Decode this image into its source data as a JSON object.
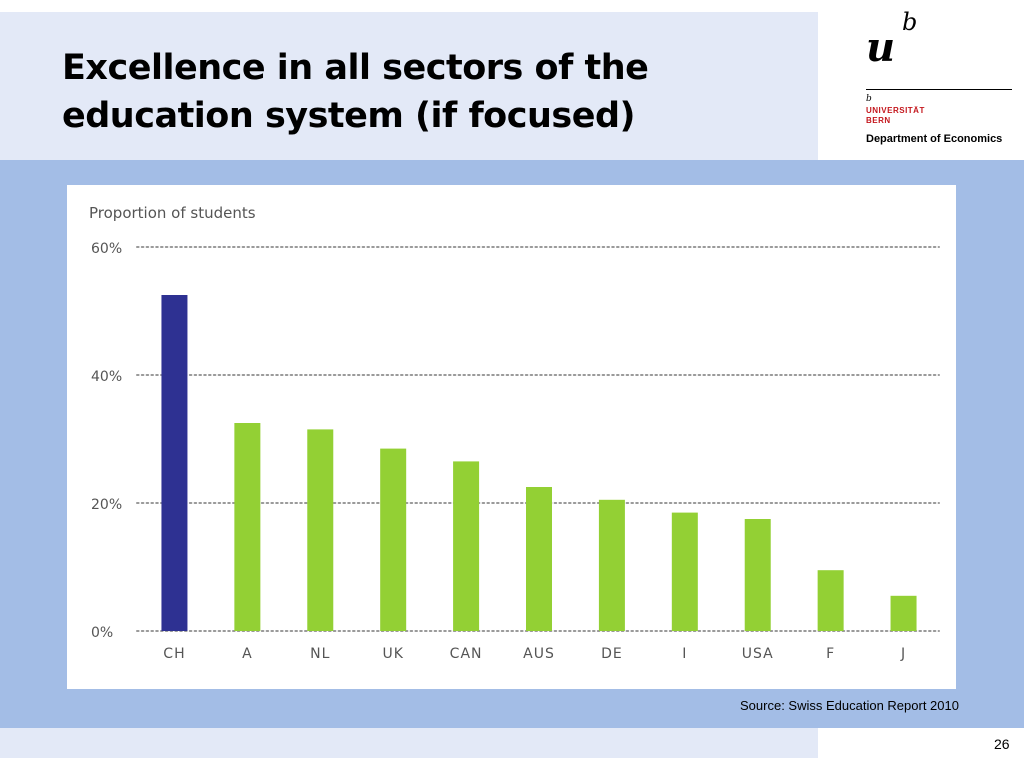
{
  "slide": {
    "title": "Excellence in all sectors of the\neducation system (if focused)",
    "source": "Source: Swiss Education Report 2010",
    "page_number": "26"
  },
  "logo": {
    "mark_u": "u",
    "mark_b": "b",
    "small_b": "b",
    "university": "UNIVERSITÄT\nBERN",
    "department": "Department of Economics"
  },
  "colors": {
    "header_band": "#e3e9f7",
    "panel": "#a3bde6",
    "highlight_bar": "#2e3192",
    "bar": "#93d034",
    "grid": "#9a9a9a",
    "logo_red": "#c4161c"
  },
  "chart_data": {
    "type": "bar",
    "title": "Proportion of students",
    "xlabel": "",
    "ylabel": "",
    "categories": [
      "CH",
      "A",
      "NL",
      "UK",
      "CAN",
      "AUS",
      "DE",
      "I",
      "USA",
      "F",
      "J"
    ],
    "values": [
      52.5,
      32.5,
      31.5,
      28.5,
      26.5,
      22.5,
      20.5,
      18.5,
      17.5,
      9.5,
      5.5
    ],
    "highlight_index": 0,
    "ylim": [
      0,
      60
    ],
    "yticks": [
      0,
      20,
      40,
      60
    ],
    "ytick_labels": [
      "0%",
      "20%",
      "40%",
      "60%"
    ],
    "grid": true,
    "grid_style": "dotted"
  }
}
